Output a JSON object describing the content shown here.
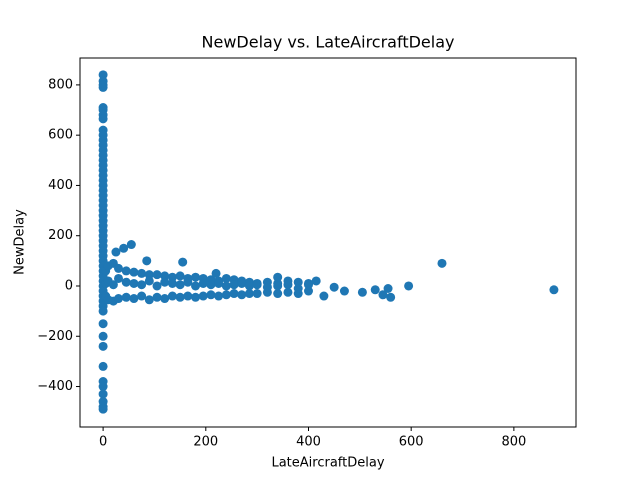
{
  "chart_data": {
    "type": "scatter",
    "title": "NewDelay vs. LateAircraftDelay",
    "x_label": "LateAircraftDelay",
    "y_label": "NewDelay",
    "color": "#1f77b4",
    "x": [
      0,
      0,
      0,
      0,
      0,
      0,
      0,
      0,
      0,
      0,
      0,
      0,
      0,
      0,
      0,
      0,
      0,
      0,
      0,
      0,
      0,
      0,
      0,
      0,
      0,
      0,
      0,
      0,
      0,
      0,
      0,
      0,
      0,
      0,
      0,
      0,
      0,
      0,
      0,
      0,
      0,
      0,
      0,
      0,
      0,
      0,
      0,
      0,
      0,
      0,
      0,
      0,
      0,
      0,
      0,
      5,
      5,
      5,
      10,
      10,
      10,
      20,
      20,
      20,
      30,
      30,
      30,
      45,
      45,
      45,
      60,
      60,
      60,
      75,
      75,
      75,
      90,
      90,
      90,
      105,
      105,
      105,
      120,
      120,
      120,
      135,
      135,
      135,
      150,
      150,
      150,
      165,
      165,
      165,
      180,
      180,
      180,
      195,
      195,
      195,
      210,
      210,
      210,
      225,
      225,
      225,
      240,
      240,
      240,
      255,
      255,
      255,
      270,
      270,
      270,
      285,
      285,
      285,
      300,
      300,
      300,
      320,
      320,
      320,
      340,
      340,
      340,
      360,
      360,
      360,
      380,
      380,
      380,
      400,
      400,
      400,
      660,
      878,
      595,
      555,
      545,
      560,
      530,
      505,
      470,
      450,
      430,
      415,
      340,
      220,
      155,
      55,
      40,
      25,
      85
    ],
    "y": [
      840,
      815,
      800,
      790,
      710,
      700,
      680,
      665,
      620,
      600,
      580,
      560,
      540,
      520,
      500,
      480,
      460,
      440,
      420,
      400,
      380,
      360,
      340,
      320,
      300,
      280,
      260,
      240,
      220,
      200,
      180,
      160,
      140,
      120,
      100,
      80,
      60,
      40,
      20,
      0,
      -20,
      -40,
      -60,
      -80,
      -100,
      -150,
      -200,
      -240,
      -320,
      -380,
      -400,
      -430,
      -460,
      -480,
      -490,
      60,
      -40,
      10,
      80,
      -55,
      20,
      90,
      -60,
      5,
      70,
      -50,
      30,
      60,
      -45,
      15,
      55,
      -50,
      10,
      50,
      -40,
      5,
      45,
      -55,
      20,
      45,
      -45,
      0,
      40,
      -50,
      15,
      35,
      -40,
      10,
      40,
      -45,
      5,
      30,
      -40,
      15,
      35,
      -45,
      0,
      30,
      -40,
      10,
      25,
      -35,
      5,
      20,
      -40,
      10,
      30,
      -35,
      0,
      25,
      -30,
      5,
      20,
      -35,
      10,
      15,
      -30,
      0,
      10,
      -30,
      5,
      15,
      -25,
      -5,
      10,
      -30,
      0,
      20,
      -25,
      5,
      15,
      -30,
      -10,
      10,
      -20,
      5,
      90,
      -15,
      0,
      -10,
      -35,
      -45,
      -15,
      -25,
      -20,
      -5,
      -40,
      20,
      35,
      50,
      95,
      165,
      150,
      135,
      100
    ],
    "xlim": [
      -45,
      921
    ],
    "ylim": [
      -561,
      907
    ],
    "xticks": [
      0,
      200,
      400,
      600,
      800
    ],
    "yticks": [
      {
        "value": -400,
        "label": "−400"
      },
      {
        "value": -200,
        "label": "−200"
      },
      0,
      200,
      400,
      600,
      800
    ]
  }
}
